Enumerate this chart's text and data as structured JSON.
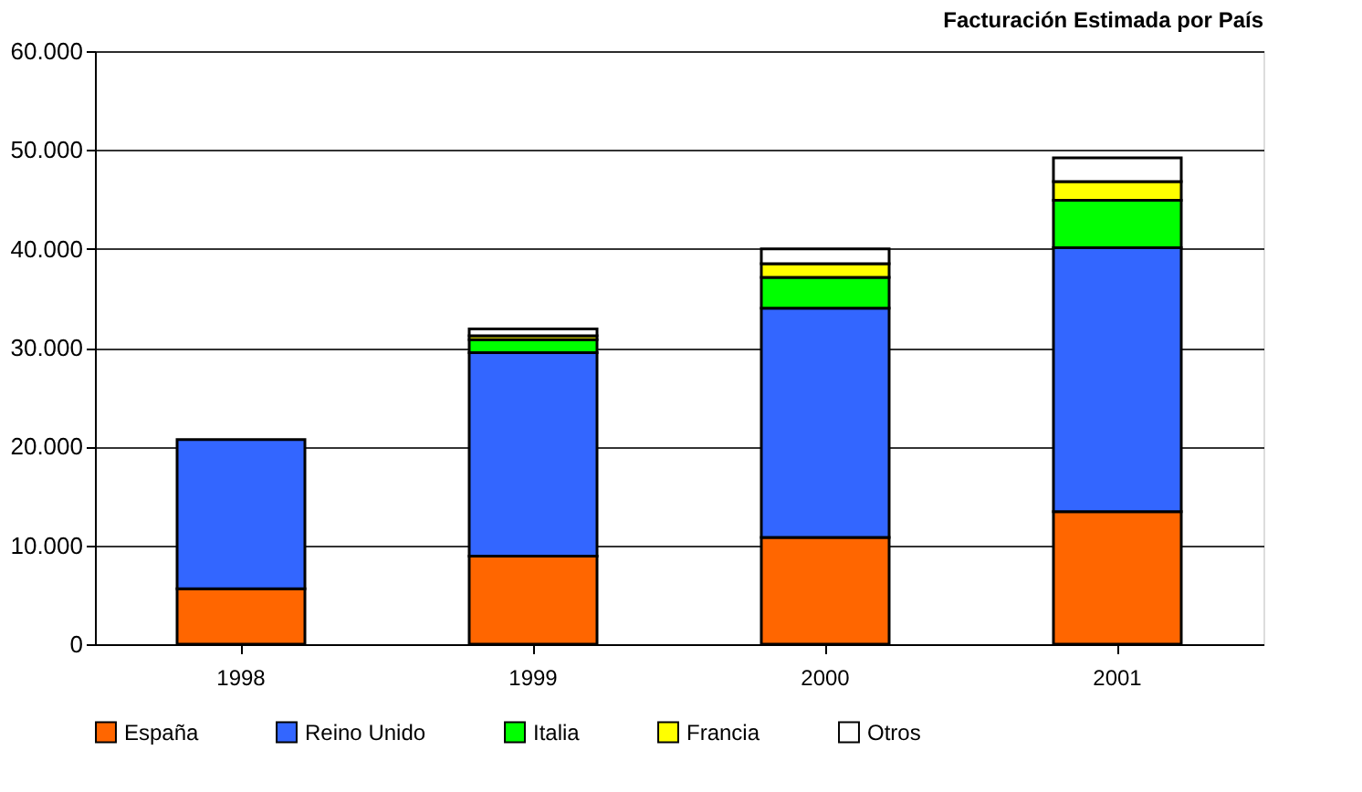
{
  "chart_data": {
    "type": "bar",
    "title": "Facturación Estimada por País",
    "stacked": true,
    "categories": [
      "1998",
      "1999",
      "2000",
      "2001"
    ],
    "series": [
      {
        "name": "España",
        "color": "#ff6600",
        "values": [
          5600,
          8900,
          10800,
          13400
        ]
      },
      {
        "name": "Reino Unido",
        "color": "#3366ff",
        "values": [
          15100,
          20600,
          23200,
          26700
        ]
      },
      {
        "name": "Italia",
        "color": "#00ff00",
        "values": [
          null,
          1300,
          3100,
          4800
        ]
      },
      {
        "name": "Francia",
        "color": "#ffff00",
        "values": [
          null,
          400,
          1400,
          1900
        ]
      },
      {
        "name": "Otros",
        "color": "#ffffff",
        "values": [
          null,
          700,
          1500,
          2400
        ]
      }
    ],
    "ylim": [
      0,
      60000
    ],
    "yticks": [
      {
        "value": 0,
        "label": "0"
      },
      {
        "value": 10000,
        "label": "10.000"
      },
      {
        "value": 20000,
        "label": "20.000"
      },
      {
        "value": 30000,
        "label": "30.000"
      },
      {
        "value": 40000,
        "label": "40.000"
      },
      {
        "value": 50000,
        "label": "50.000"
      },
      {
        "value": 60000,
        "label": "60.000"
      }
    ],
    "grid": "y",
    "legend": "bottom"
  }
}
